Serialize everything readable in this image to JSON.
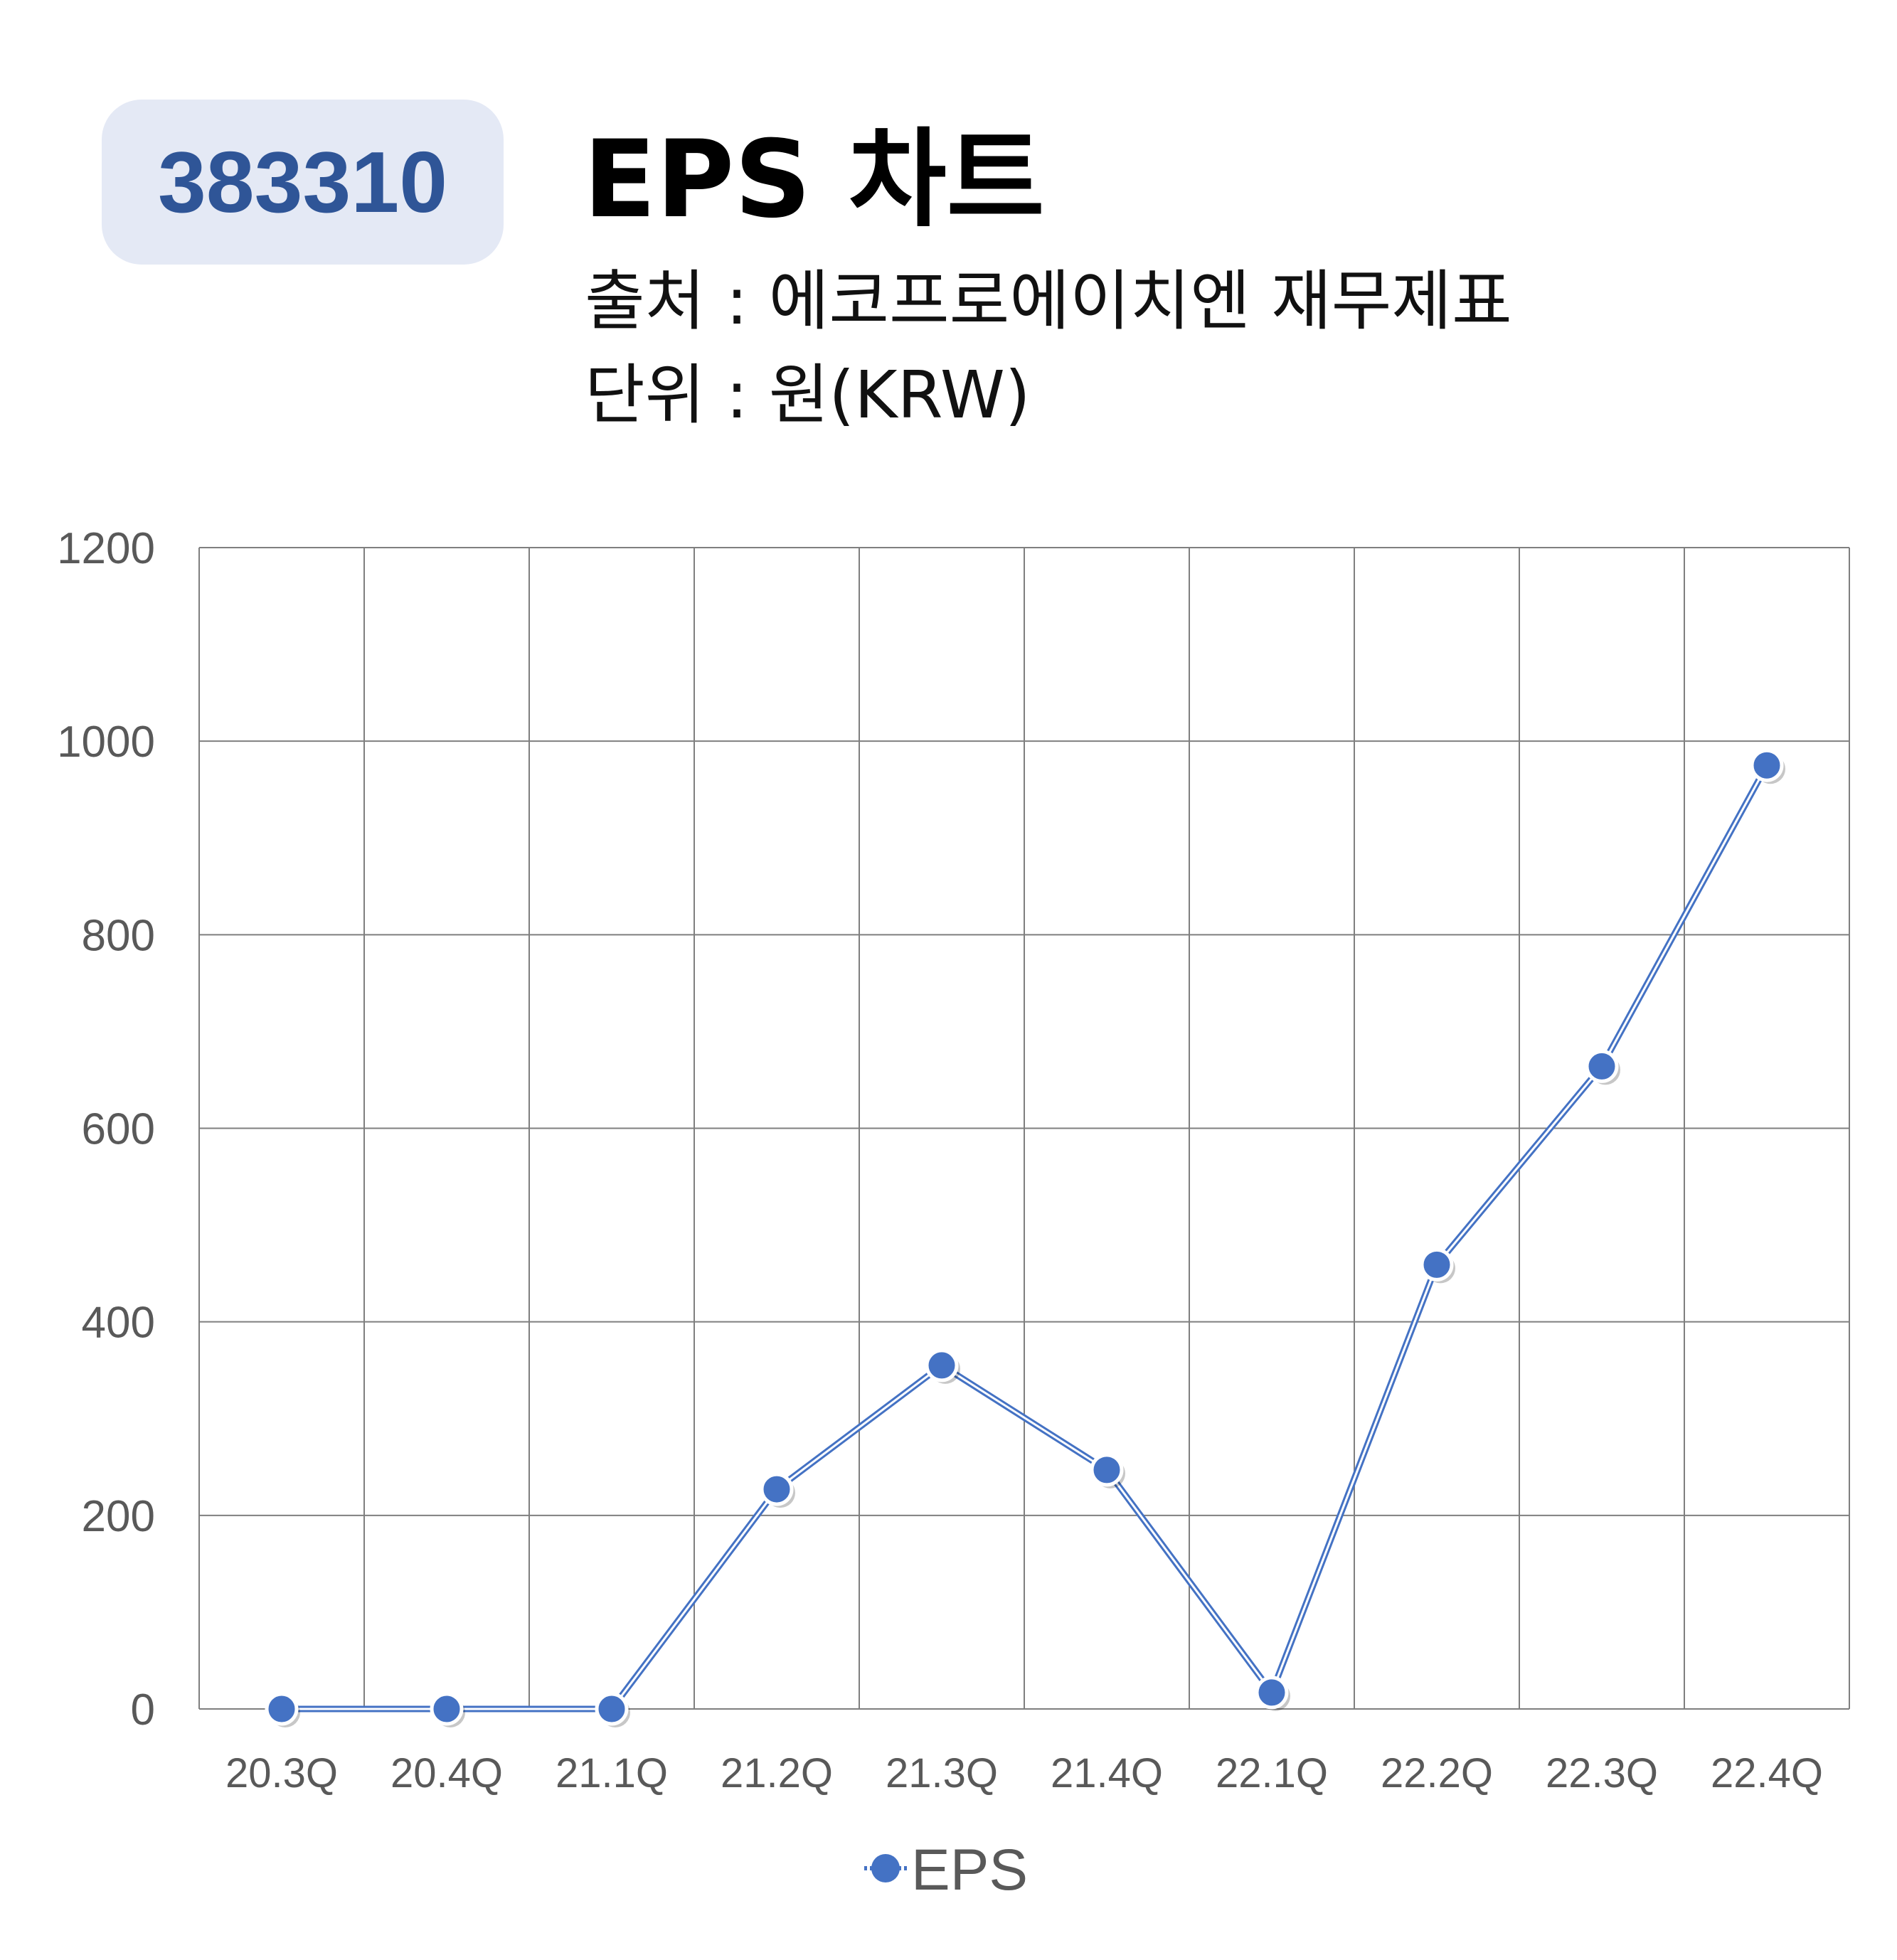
{
  "header": {
    "code": "383310",
    "title": "EPS 차트",
    "source_line": "출처 : 에코프로에이치엔 재무제표",
    "unit_line": "단위 : 원(KRW)"
  },
  "colors": {
    "series": "#4472c4",
    "badge_bg": "#e4e9f5",
    "badge_text": "#2f5597",
    "grid": "#7f7f7f"
  },
  "chart_data": {
    "type": "line",
    "categories": [
      "20.3Q",
      "20.4Q",
      "21.1Q",
      "21.2Q",
      "21.3Q",
      "21.4Q",
      "22.1Q",
      "22.2Q",
      "22.3Q",
      "22.4Q"
    ],
    "series": [
      {
        "name": "EPS",
        "values": [
          0,
          0,
          0,
          227,
          355,
          247,
          17,
          459,
          664,
          975
        ]
      }
    ],
    "ylim": [
      0,
      1200
    ],
    "yticks": [
      "0",
      "200",
      "400",
      "600",
      "800",
      "1000",
      "1200"
    ],
    "grid": true,
    "legend": "bottom-center"
  }
}
